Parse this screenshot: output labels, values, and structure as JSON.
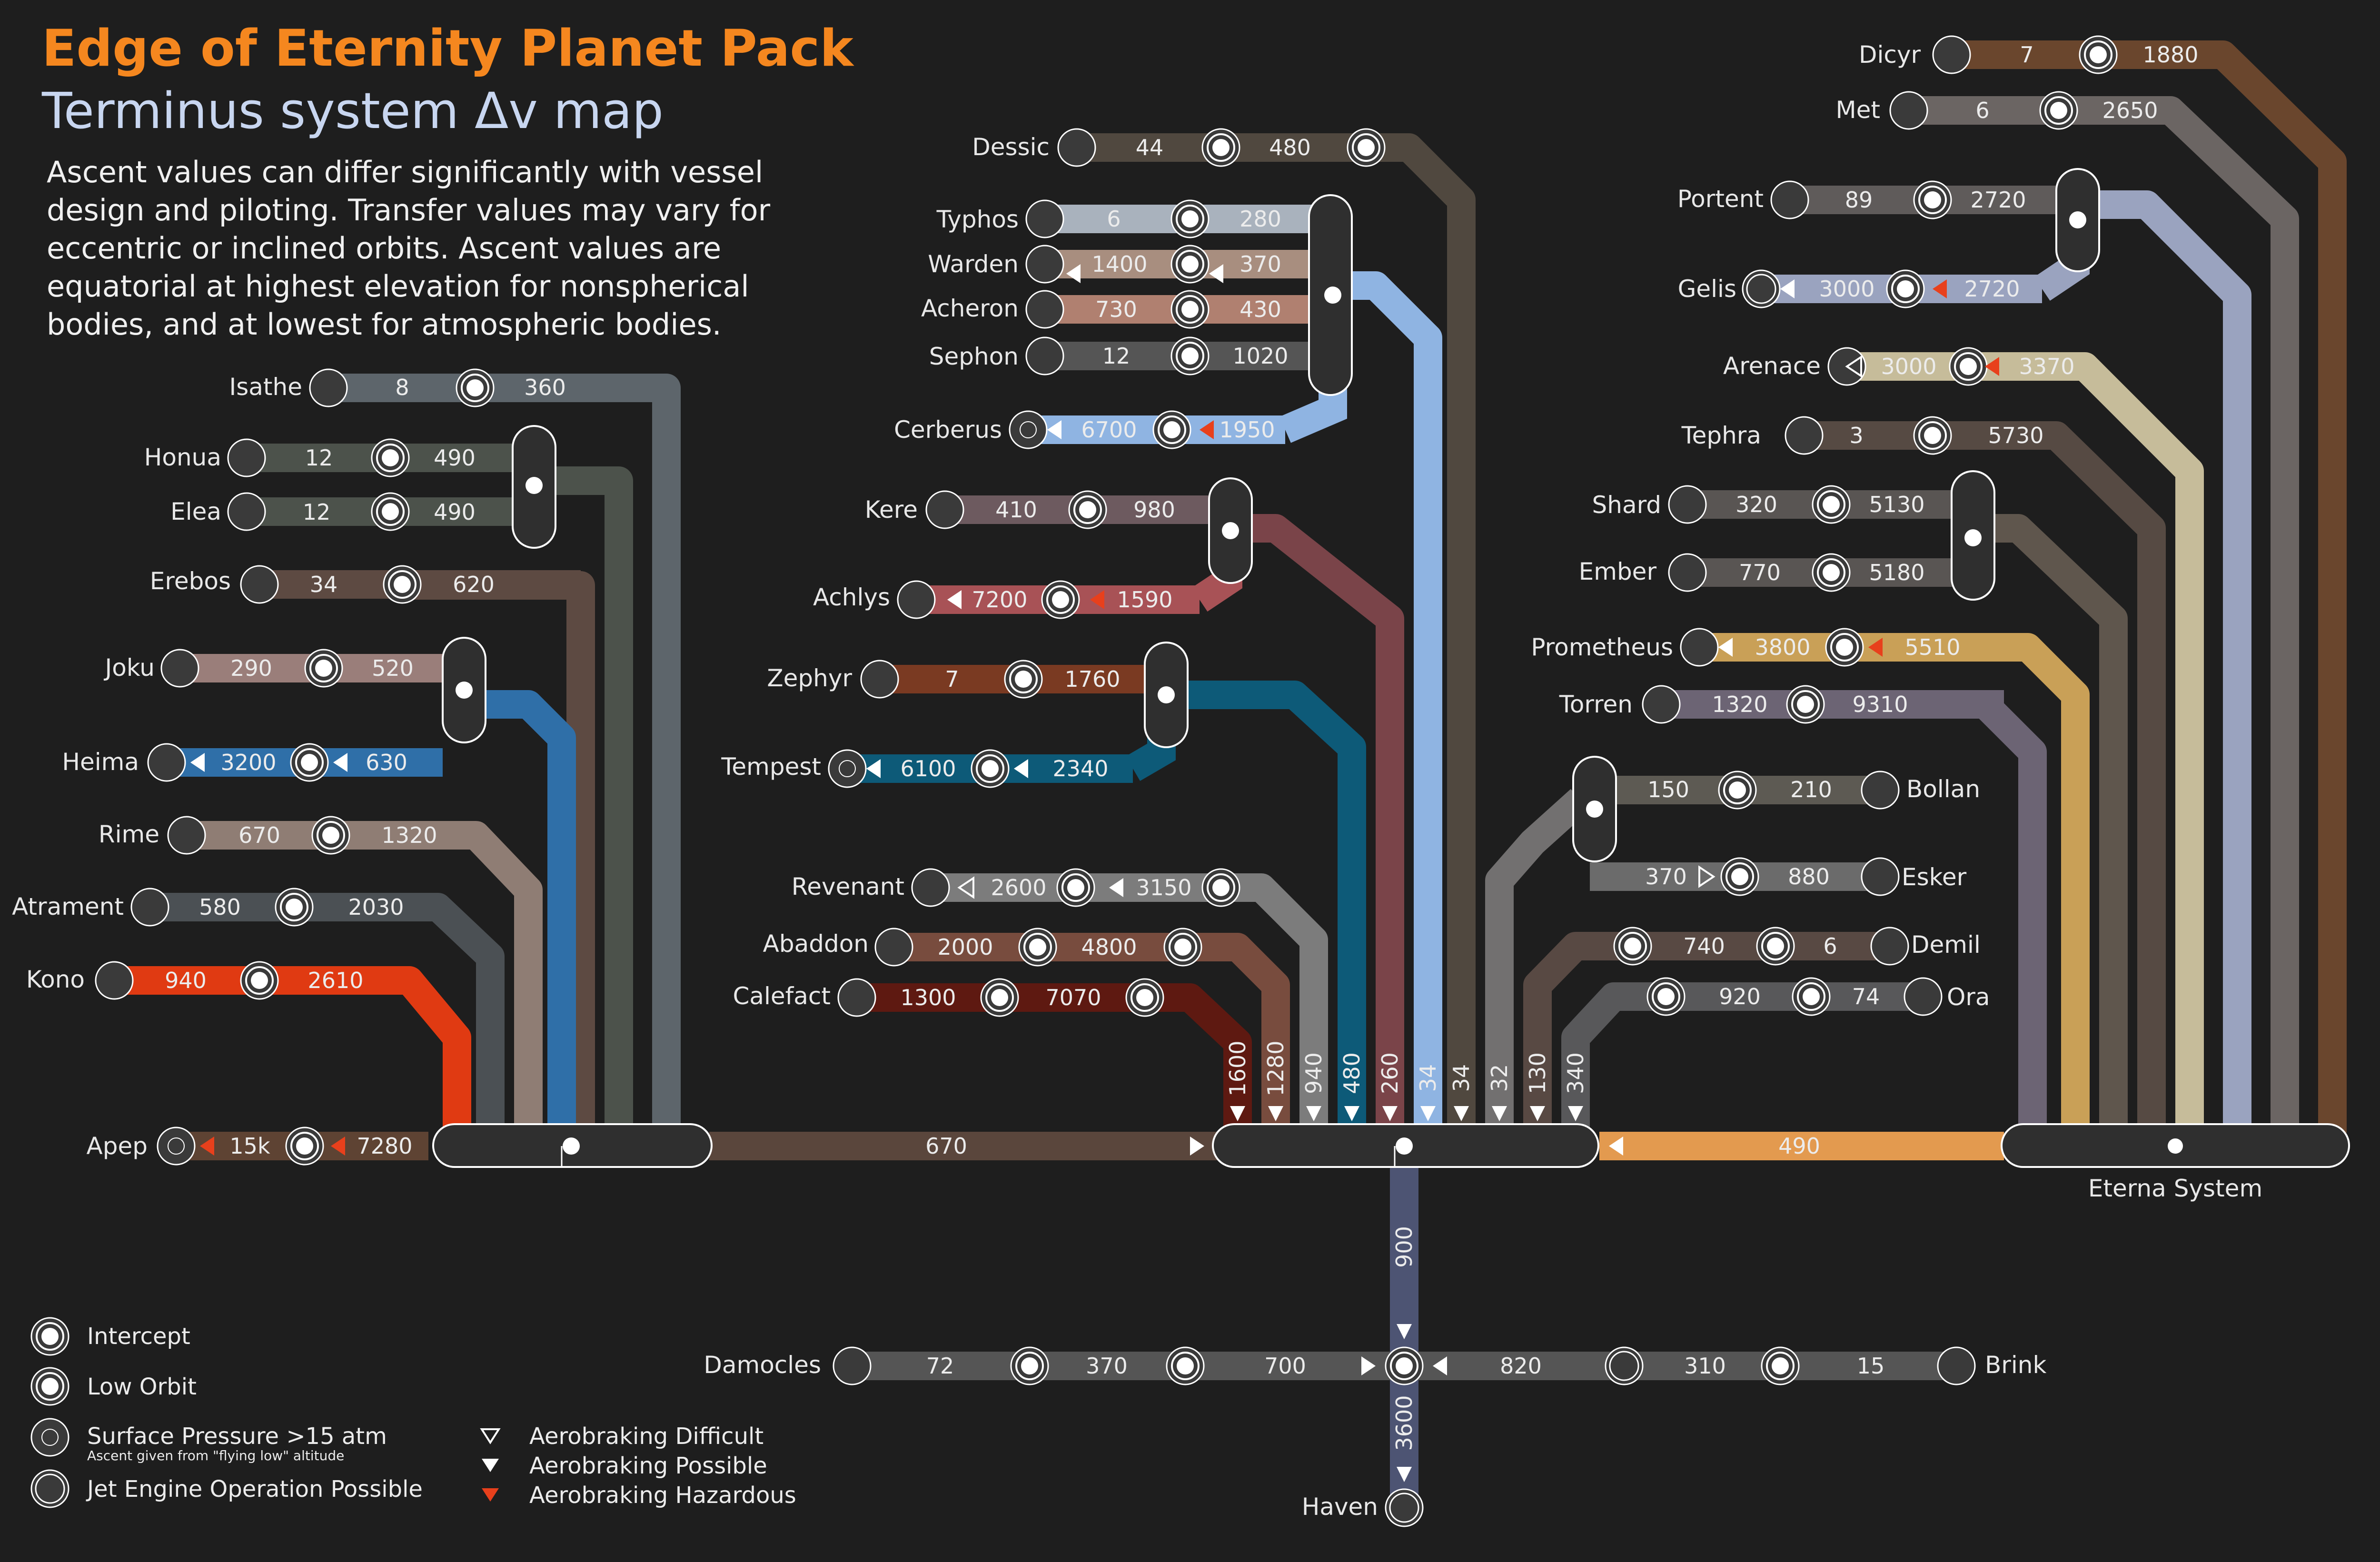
{
  "header": {
    "title": "Edge of Eternity Planet Pack",
    "subtitle": "Terminus system Δv map",
    "description": [
      "Ascent values can differ significantly with vessel",
      "design and piloting. Transfer values may vary for",
      "eccentric or inclined orbits. Ascent values are",
      "equatorial at highest elevation for nonspherical",
      "bodies, and at lowest for atmospheric bodies."
    ]
  },
  "colors": {
    "background": "#1e1e1e",
    "accent": "#f5871f",
    "hazard": "#e8401c",
    "hub": "#2f2f2f"
  },
  "bodies": {
    "isathe": {
      "name": "Isathe",
      "ascent": "8",
      "transfer": "360"
    },
    "honua": {
      "name": "Honua",
      "ascent": "12",
      "transfer": "490"
    },
    "elea": {
      "name": "Elea",
      "ascent": "12",
      "transfer": "490"
    },
    "erebos": {
      "name": "Erebos",
      "ascent": "34",
      "transfer": "620"
    },
    "joku": {
      "name": "Joku",
      "ascent": "290",
      "transfer": "520"
    },
    "heima": {
      "name": "Heima",
      "ascent": "3200",
      "transfer": "630"
    },
    "rime": {
      "name": "Rime",
      "ascent": "670",
      "transfer": "1320"
    },
    "atrament": {
      "name": "Atrament",
      "ascent": "580",
      "transfer": "2030"
    },
    "kono": {
      "name": "Kono",
      "ascent": "940",
      "transfer": "2610"
    },
    "apep": {
      "name": "Apep",
      "ascent": "15k",
      "transfer": "7280"
    },
    "dessic": {
      "name": "Dessic",
      "ascent": "44",
      "transfer": "480"
    },
    "typhos": {
      "name": "Typhos",
      "ascent": "6",
      "transfer": "280"
    },
    "warden": {
      "name": "Warden",
      "ascent": "1400",
      "transfer": "370"
    },
    "acheron": {
      "name": "Acheron",
      "ascent": "730",
      "transfer": "430"
    },
    "sephon": {
      "name": "Sephon",
      "ascent": "12",
      "transfer": "1020"
    },
    "cerberus": {
      "name": "Cerberus",
      "ascent": "6700",
      "transfer": "1950"
    },
    "kere": {
      "name": "Kere",
      "ascent": "410",
      "transfer": "980"
    },
    "achlys": {
      "name": "Achlys",
      "ascent": "7200",
      "transfer": "1590"
    },
    "zephyr": {
      "name": "Zephyr",
      "ascent": "7",
      "transfer": "1760"
    },
    "tempest": {
      "name": "Tempest",
      "ascent": "6100",
      "transfer": "2340"
    },
    "revenant": {
      "name": "Revenant",
      "ascent": "2600",
      "transfer": "3150"
    },
    "abaddon": {
      "name": "Abaddon",
      "ascent": "2000",
      "transfer": "4800"
    },
    "calefact": {
      "name": "Calefact",
      "ascent": "1300",
      "transfer": "7070"
    },
    "bollan": {
      "name": "Bollan",
      "ascent": "210",
      "transfer": "150"
    },
    "esker": {
      "name": "Esker",
      "ascent": "880",
      "transfer": "370"
    },
    "demil": {
      "name": "Demil",
      "ascent": "6",
      "transfer": "740"
    },
    "ora": {
      "name": "Ora",
      "ascent": "74",
      "transfer": "920"
    },
    "dicyr": {
      "name": "Dicyr",
      "ascent": "7",
      "transfer": "1880"
    },
    "met": {
      "name": "Met",
      "ascent": "6",
      "transfer": "2650"
    },
    "portent": {
      "name": "Portent",
      "ascent": "89",
      "transfer": "2720"
    },
    "gelis": {
      "name": "Gelis",
      "ascent": "3000",
      "transfer": "2720"
    },
    "arenace": {
      "name": "Arenace",
      "ascent": "3000",
      "transfer": "3370"
    },
    "tephra": {
      "name": "Tephra",
      "ascent": "3",
      "transfer": "5730"
    },
    "shard": {
      "name": "Shard",
      "ascent": "320",
      "transfer": "5130"
    },
    "ember": {
      "name": "Ember",
      "ascent": "770",
      "transfer": "5180"
    },
    "prometheus": {
      "name": "Prometheus",
      "ascent": "3800",
      "transfer": "5510"
    },
    "torren": {
      "name": "Torren",
      "ascent": "1320",
      "transfer": "9310"
    },
    "damocles": {
      "name": "Damocles",
      "ascent": "72",
      "transfer1": "370",
      "transfer2": "700"
    },
    "brink": {
      "name": "Brink",
      "ascent": "15",
      "transfer1": "310",
      "transfer2": "820"
    },
    "haven": {
      "name": "Haven",
      "transfer": "3600"
    }
  },
  "trunk": {
    "left_link": "670",
    "right_link": "490",
    "haven_link": "900",
    "eterna": "Eterna System",
    "verticals": [
      "1600",
      "1280",
      "940",
      "480",
      "260",
      "34",
      "34",
      "32",
      "130",
      "340"
    ]
  },
  "legend": {
    "intercept": "Intercept",
    "low_orbit": "Low Orbit",
    "surface_pressure": "Surface Pressure >15 atm",
    "surface_note": "Ascent given from \"flying low\" altitude",
    "jet": "Jet Engine Operation Possible",
    "aero_difficult": "Aerobraking Difficult",
    "aero_possible": "Aerobraking Possible",
    "aero_hazardous": "Aerobraking Hazardous"
  }
}
